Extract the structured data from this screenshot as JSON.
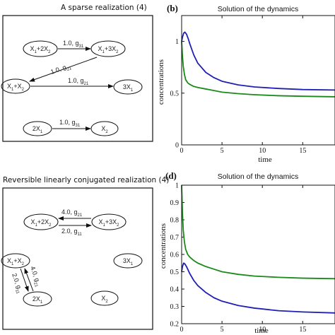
{
  "panels": {
    "a": {
      "title": "A sparse realization (4)",
      "nodes": [
        {
          "id": "n1",
          "main": "X",
          "sub1": "1",
          "mid": "+2X",
          "sub2": "2"
        },
        {
          "id": "n2",
          "main": "X",
          "sub1": "1",
          "mid": "+3X",
          "sub2": "2"
        },
        {
          "id": "n3",
          "main": "X",
          "sub1": "1",
          "mid": "+X",
          "sub2": "2"
        },
        {
          "id": "n4",
          "main": "3X",
          "sub1": "1",
          "mid": "",
          "sub2": ""
        },
        {
          "id": "n5",
          "main": "2X",
          "sub1": "1",
          "mid": "",
          "sub2": ""
        },
        {
          "id": "n6",
          "main": "X",
          "sub1": "2",
          "mid": "",
          "sub2": ""
        }
      ],
      "reactions": [
        {
          "rate": "1.0, g",
          "sub": "31"
        },
        {
          "rate": "1.0, g",
          "sub": "21"
        },
        {
          "rate": "1.0, g",
          "sub": "21"
        },
        {
          "rate": "1.0, g",
          "sub": "31"
        }
      ]
    },
    "c": {
      "title": "Reversible linearly conjugated realization (4)",
      "nodes": [
        {
          "id": "m1",
          "main": "X",
          "sub1": "1",
          "mid": "+2X",
          "sub2": "2"
        },
        {
          "id": "m2",
          "main": "X",
          "sub1": "1",
          "mid": "+3X",
          "sub2": "2"
        },
        {
          "id": "m3",
          "main": "X",
          "sub1": "1",
          "mid": "+X",
          "sub2": "2"
        },
        {
          "id": "m4",
          "main": "3X",
          "sub1": "1",
          "mid": "",
          "sub2": ""
        },
        {
          "id": "m5",
          "main": "2X",
          "sub1": "1",
          "mid": "",
          "sub2": ""
        },
        {
          "id": "m6",
          "main": "X",
          "sub1": "2",
          "mid": "",
          "sub2": ""
        }
      ],
      "reactions": [
        {
          "rate": "4.0, g",
          "sub": "21"
        },
        {
          "rate": "2.0, g",
          "sub": "11"
        },
        {
          "rate": "4.0, g",
          "sub": "21"
        },
        {
          "rate": "2.0, g",
          "sub": "11"
        }
      ]
    }
  },
  "chart_data": [
    {
      "panel_label": "(b)",
      "type": "line",
      "title": "Solution of the dynamics",
      "xlabel": "time",
      "ylabel": "concentrations",
      "xlim": [
        0,
        19
      ],
      "ylim": [
        0,
        1.25
      ],
      "xticks": [
        0,
        5,
        10,
        15
      ],
      "yticks": [
        0,
        0.5,
        1
      ],
      "ytick_labels": [
        "0",
        "0.5",
        "1"
      ],
      "grid": false,
      "series": [
        {
          "color": "#1f1fb4",
          "x": [
            0,
            0.1,
            0.25,
            0.4,
            0.6,
            0.8,
            1.0,
            1.5,
            2,
            3,
            4,
            5,
            7,
            9,
            12,
            15,
            19
          ],
          "y": [
            1.0,
            1.04,
            1.08,
            1.09,
            1.07,
            1.03,
            0.98,
            0.87,
            0.79,
            0.7,
            0.65,
            0.615,
            0.58,
            0.56,
            0.545,
            0.535,
            0.53
          ]
        },
        {
          "color": "#1a8a1a",
          "x": [
            0,
            0.1,
            0.2,
            0.35,
            0.5,
            0.75,
            1.0,
            1.5,
            2,
            3,
            4,
            5,
            7,
            9,
            12,
            15,
            19
          ],
          "y": [
            1.0,
            0.86,
            0.76,
            0.68,
            0.63,
            0.6,
            0.585,
            0.565,
            0.555,
            0.54,
            0.525,
            0.51,
            0.495,
            0.485,
            0.475,
            0.47,
            0.465
          ]
        }
      ]
    },
    {
      "panel_label": "(d)",
      "type": "line",
      "title": "Solution of the dynamics",
      "xlabel": "time",
      "ylabel": "concentrations",
      "xlim": [
        0,
        19
      ],
      "ylim": [
        0.2,
        1.0
      ],
      "xticks": [
        0,
        5,
        10,
        15
      ],
      "yticks": [
        0.2,
        0.3,
        0.4,
        0.5,
        0.6,
        0.7,
        0.8,
        0.9,
        1
      ],
      "ytick_labels": [
        "0.2",
        "0.3",
        "0.4",
        "0.5",
        "0.6",
        "0.7",
        "0.8",
        "0.9",
        "1"
      ],
      "grid": false,
      "series": [
        {
          "color": "#1a8a1a",
          "x": [
            0,
            0.1,
            0.2,
            0.35,
            0.5,
            0.75,
            1.0,
            1.5,
            2,
            3,
            4,
            5,
            7,
            9,
            12,
            15,
            19
          ],
          "y": [
            1.0,
            0.84,
            0.74,
            0.67,
            0.63,
            0.6,
            0.585,
            0.565,
            0.55,
            0.53,
            0.515,
            0.5,
            0.485,
            0.475,
            0.468,
            0.463,
            0.46
          ]
        },
        {
          "color": "#1f1fb4",
          "x": [
            0,
            0.1,
            0.25,
            0.4,
            0.6,
            0.8,
            1.0,
            1.5,
            2,
            3,
            4,
            5,
            7,
            9,
            12,
            15,
            19
          ],
          "y": [
            0.5,
            0.53,
            0.55,
            0.545,
            0.53,
            0.51,
            0.49,
            0.45,
            0.42,
            0.38,
            0.35,
            0.33,
            0.305,
            0.29,
            0.275,
            0.268,
            0.262
          ]
        }
      ]
    }
  ]
}
